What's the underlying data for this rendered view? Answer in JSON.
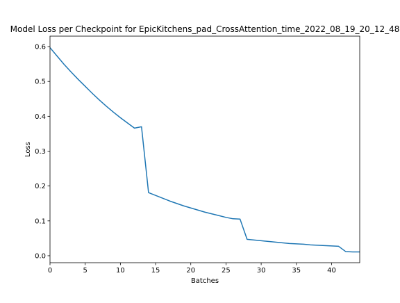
{
  "chart_data": {
    "type": "line",
    "title": "Model Loss per Checkpoint for EpicKitchens_pad_CrossAttention_time_2022_08_19_20_12_48",
    "xlabel": "Batches",
    "ylabel": "Loss",
    "xlim": [
      0,
      44
    ],
    "ylim": [
      -0.02,
      0.63
    ],
    "xticks": [
      0,
      5,
      10,
      15,
      20,
      25,
      30,
      35,
      40
    ],
    "yticks": [
      0.0,
      0.1,
      0.2,
      0.3,
      0.4,
      0.5,
      0.6
    ],
    "ytick_labels": [
      "0.0",
      "0.1",
      "0.2",
      "0.3",
      "0.4",
      "0.5",
      "0.6"
    ],
    "grid": false,
    "legend": "none",
    "series": [
      {
        "color": "#1f77b4",
        "x": [
          0,
          1,
          2,
          3,
          4,
          5,
          6,
          7,
          8,
          9,
          10,
          11,
          12,
          13,
          14,
          15,
          16,
          17,
          18,
          19,
          20,
          21,
          22,
          23,
          24,
          25,
          26,
          27,
          28,
          29,
          30,
          31,
          32,
          33,
          34,
          35,
          36,
          37,
          38,
          39,
          40,
          41,
          42,
          43,
          44
        ],
        "values": [
          0.597,
          0.573,
          0.549,
          0.527,
          0.506,
          0.486,
          0.466,
          0.447,
          0.429,
          0.412,
          0.396,
          0.381,
          0.366,
          0.37,
          0.181,
          0.173,
          0.165,
          0.157,
          0.15,
          0.143,
          0.137,
          0.131,
          0.125,
          0.12,
          0.115,
          0.11,
          0.106,
          0.105,
          0.047,
          0.045,
          0.043,
          0.041,
          0.039,
          0.037,
          0.035,
          0.034,
          0.033,
          0.031,
          0.03,
          0.029,
          0.028,
          0.027,
          0.012,
          0.011,
          0.011
        ]
      }
    ]
  }
}
